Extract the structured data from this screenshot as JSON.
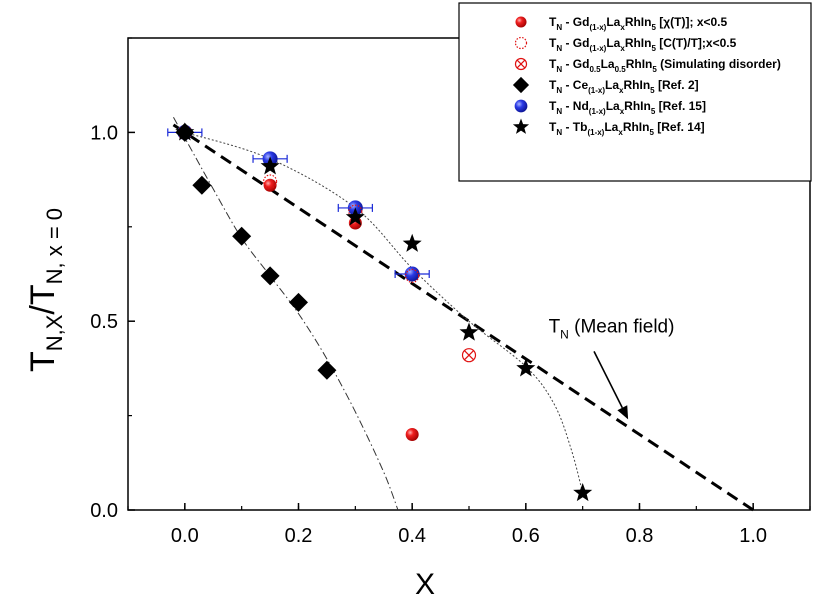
{
  "chart_data": {
    "type": "scatter",
    "title": "",
    "xlabel": "X",
    "ylabel": {
      "main": "T",
      "sub1": "N,X",
      "slash": "/T",
      "sub2": "N, x = 0"
    },
    "xlim": [
      -0.1,
      1.1
    ],
    "ylim": [
      0.0,
      1.25
    ],
    "x_ticks": [
      0.0,
      0.2,
      0.4,
      0.6,
      0.8,
      1.0
    ],
    "x_tick_labels": [
      "0.0",
      "0.2",
      "0.4",
      "0.6",
      "0.8",
      "1.0"
    ],
    "y_ticks": [
      0.0,
      0.5,
      1.0
    ],
    "y_tick_labels": [
      "0.0",
      "0.5",
      "1.0"
    ],
    "grid": false,
    "legend_position": "top-right",
    "series": [
      {
        "name": "Gd La RhIn5 chi(T)",
        "label_parts": [
          "T",
          "N",
          " - Gd",
          "(1-x)",
          "La",
          "x",
          "RhIn",
          "5",
          " [χ(T)]; x<0.5"
        ],
        "marker": "filled-sphere",
        "color": "#e01010",
        "x": [
          0.0,
          0.15,
          0.3,
          0.4
        ],
        "y": [
          1.0,
          0.86,
          0.76,
          0.2
        ]
      },
      {
        "name": "Gd La RhIn5 C(T)/T",
        "label_parts": [
          "T",
          "N",
          " - Gd",
          "(1-x)",
          "La",
          "x",
          "RhIn",
          "5",
          " [C(T)/T];x<0.5"
        ],
        "marker": "open-circle-dotted",
        "color": "#e01010",
        "x": [
          0.0,
          0.15,
          0.3,
          0.4
        ],
        "y": [
          1.0,
          0.87,
          0.79,
          0.62
        ]
      },
      {
        "name": "Gd0.5La0.5RhIn5 simulating disorder",
        "label_parts": [
          "T",
          "N",
          " - Gd",
          "0.5",
          "La",
          "0.5",
          "RhIn",
          "5",
          " (Simulating disorder)"
        ],
        "marker": "circle-cross",
        "color": "#e01010",
        "x": [
          0.5
        ],
        "y": [
          0.41
        ]
      },
      {
        "name": "Ce La RhIn5 Ref 2",
        "label_parts": [
          "T",
          "N",
          " - Ce",
          "(1-x)",
          "La",
          "x",
          "RhIn",
          "5",
          " [Ref. 2]"
        ],
        "marker": "diamond",
        "color": "#000000",
        "x": [
          0.0,
          0.03,
          0.1,
          0.15,
          0.2,
          0.25
        ],
        "y": [
          1.0,
          0.86,
          0.725,
          0.62,
          0.55,
          0.37
        ]
      },
      {
        "name": "Nd La RhIn5 Ref 15",
        "label_parts": [
          "T",
          "N",
          " - Nd",
          "(1-x)",
          "La",
          "x",
          "RhIn",
          "5",
          " [Ref. 15]"
        ],
        "marker": "blue-sphere",
        "color": "#1a2ad8",
        "x": [
          0.0,
          0.15,
          0.3,
          0.4
        ],
        "y": [
          1.0,
          0.93,
          0.8,
          0.625
        ],
        "xerr": [
          0.03,
          0.03,
          0.03,
          0.03
        ]
      },
      {
        "name": "Tb La RhIn5 Ref 14",
        "label_parts": [
          "T",
          "N",
          " - Tb",
          "(1-x)",
          "La",
          "x",
          "RhIn",
          "5",
          " [Ref. 14]"
        ],
        "marker": "star",
        "color": "#000000",
        "x": [
          0.0,
          0.15,
          0.3,
          0.4,
          0.5,
          0.6,
          0.7
        ],
        "y": [
          1.0,
          0.91,
          0.775,
          0.705,
          0.47,
          0.375,
          0.045
        ]
      }
    ],
    "lines": [
      {
        "name": "mean-field",
        "style": "dashed-thick",
        "x": [
          -0.02,
          1.0
        ],
        "y": [
          1.02,
          0.0
        ]
      },
      {
        "name": "ce-guide",
        "style": "dash-dot",
        "x": [
          -0.02,
          0.05,
          0.1,
          0.15,
          0.2,
          0.25,
          0.3,
          0.35,
          0.375
        ],
        "y": [
          1.04,
          0.85,
          0.72,
          0.62,
          0.52,
          0.4,
          0.26,
          0.1,
          0.0
        ]
      },
      {
        "name": "tb-guide",
        "style": "dotted",
        "x": [
          0.0,
          0.15,
          0.3,
          0.4,
          0.5,
          0.6,
          0.65,
          0.68,
          0.7
        ],
        "y": [
          1.0,
          0.93,
          0.8,
          0.64,
          0.5,
          0.38,
          0.28,
          0.16,
          0.045
        ]
      }
    ],
    "annotations": [
      {
        "name": "mean-field-label",
        "text_main": "T",
        "text_sub": "N",
        "text_rest": " (Mean field)",
        "text_x": 0.64,
        "text_y": 0.47,
        "arrow_from": [
          0.72,
          0.42
        ],
        "arrow_to": [
          0.78,
          0.24
        ]
      }
    ]
  }
}
